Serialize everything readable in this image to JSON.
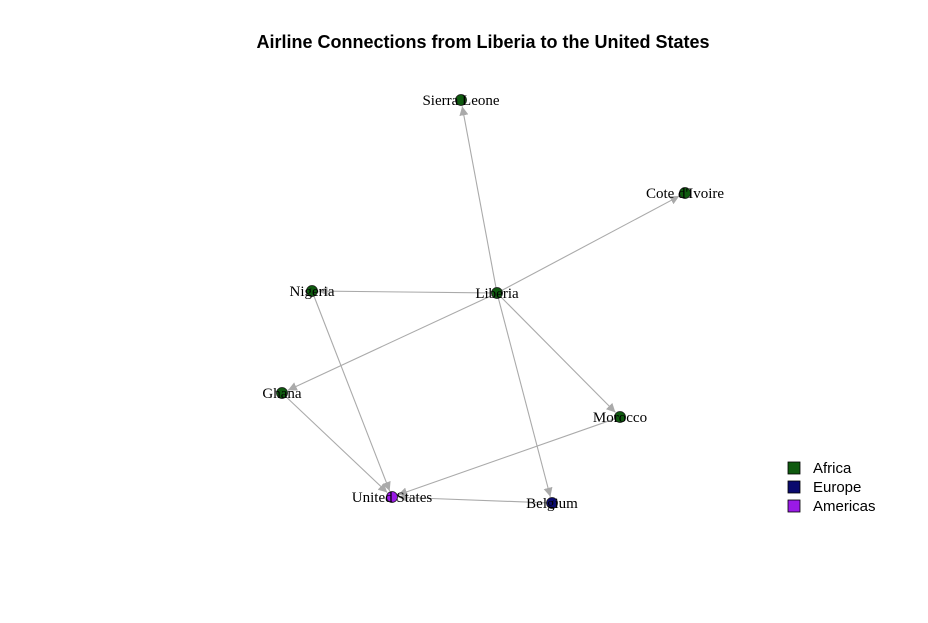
{
  "title": "Airline Connections from Liberia to the United States",
  "colors": {
    "Africa": "#0f5a0f",
    "Europe": "#0a0a6e",
    "Americas": "#9a1ae6",
    "edge": "#aaaaaa"
  },
  "nodes": [
    {
      "id": "liberia",
      "label": "Liberia",
      "region": "Africa"
    },
    {
      "id": "sierra_leone",
      "label": "Sierra Leone",
      "region": "Africa"
    },
    {
      "id": "cote_divoire",
      "label": "Cote d'Ivoire",
      "region": "Africa"
    },
    {
      "id": "nigeria",
      "label": "Nigeria",
      "region": "Africa"
    },
    {
      "id": "ghana",
      "label": "Ghana",
      "region": "Africa"
    },
    {
      "id": "morocco",
      "label": "Morocco",
      "region": "Africa"
    },
    {
      "id": "united_states",
      "label": "United States",
      "region": "Americas"
    },
    {
      "id": "belgium",
      "label": "Belgium",
      "region": "Europe"
    }
  ],
  "edges": [
    {
      "from": "liberia",
      "to": "sierra_leone"
    },
    {
      "from": "liberia",
      "to": "cote_divoire"
    },
    {
      "from": "liberia",
      "to": "nigeria"
    },
    {
      "from": "liberia",
      "to": "ghana"
    },
    {
      "from": "liberia",
      "to": "morocco"
    },
    {
      "from": "liberia",
      "to": "belgium"
    },
    {
      "from": "nigeria",
      "to": "united_states"
    },
    {
      "from": "ghana",
      "to": "united_states"
    },
    {
      "from": "morocco",
      "to": "united_states"
    },
    {
      "from": "belgium",
      "to": "united_states"
    }
  ],
  "legend": [
    {
      "label": "Africa",
      "region": "Africa"
    },
    {
      "label": "Europe",
      "region": "Europe"
    },
    {
      "label": "Americas",
      "region": "Americas"
    }
  ]
}
